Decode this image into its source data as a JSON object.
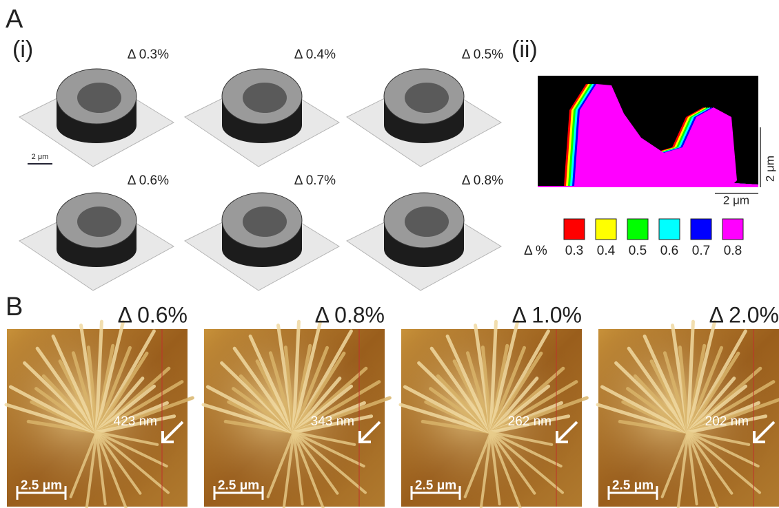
{
  "panel_a": {
    "label": "A",
    "sub_i": "(i)",
    "sub_ii": "(ii)",
    "cells": [
      {
        "label": "Δ 0.3%"
      },
      {
        "label": "Δ 0.4%"
      },
      {
        "label": "Δ 0.5%"
      },
      {
        "label": "Δ 0.6%"
      },
      {
        "label": "Δ 0.7%"
      },
      {
        "label": "Δ 0.8%"
      }
    ],
    "scale_bar": "2 μm",
    "profile": {
      "y_scale": "2 μm",
      "x_scale": "2 μm",
      "legend_title": "Δ %",
      "legend": [
        {
          "label": "0.3",
          "color": "#ff0000"
        },
        {
          "label": "0.4",
          "color": "#ffff00"
        },
        {
          "label": "0.5",
          "color": "#00ff00"
        },
        {
          "label": "0.6",
          "color": "#00ffff"
        },
        {
          "label": "0.7",
          "color": "#0000ff"
        },
        {
          "label": "0.8",
          "color": "#ff00ff"
        }
      ]
    }
  },
  "panel_b": {
    "label": "B",
    "images": [
      {
        "title": "Δ 0.6%",
        "measure": "423 nm",
        "scale_bar": "2.5 μm"
      },
      {
        "title": "Δ 0.8%",
        "measure": "343 nm",
        "scale_bar": "2.5 μm"
      },
      {
        "title": "Δ 1.0%",
        "measure": "262 nm",
        "scale_bar": "2.5 μm"
      },
      {
        "title": "Δ 2.0%",
        "measure": "202 nm",
        "scale_bar": "2.5 μm"
      }
    ]
  }
}
